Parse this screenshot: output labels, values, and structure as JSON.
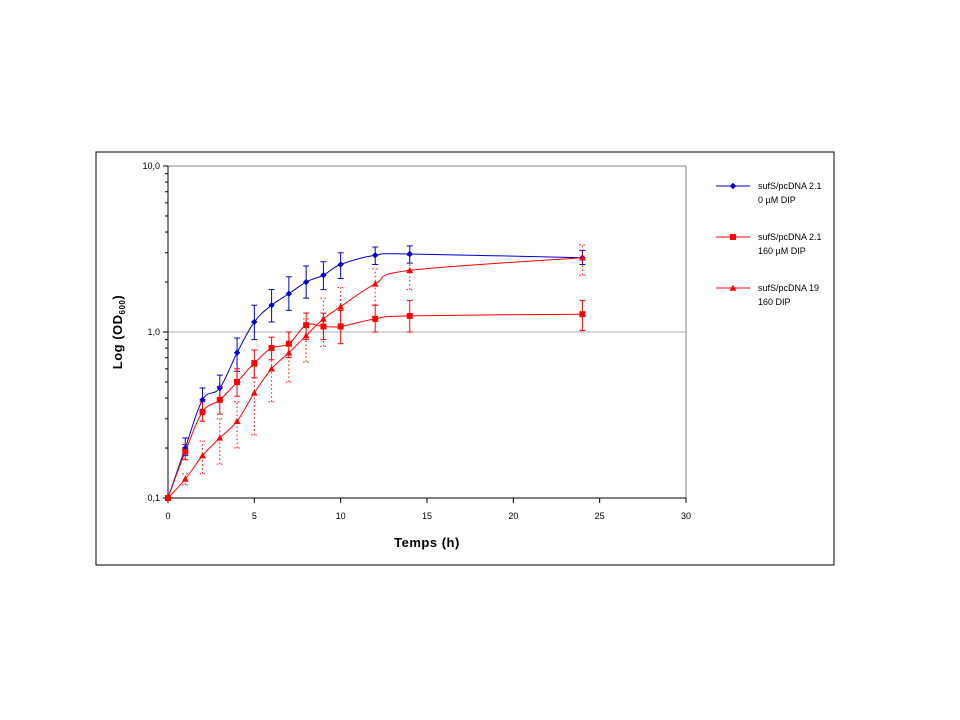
{
  "chart_data": {
    "type": "line",
    "title": "",
    "xlabel": "Temps (h)",
    "ylabel": {
      "prefix": "Log (OD",
      "subscript": "600",
      "suffix": ")"
    },
    "xlim": [
      0,
      30
    ],
    "ylim": [
      0.1,
      10
    ],
    "yscale": "log",
    "x_ticks": [
      0,
      5,
      10,
      15,
      20,
      25,
      30
    ],
    "x_tick_labels": [
      "0",
      "5",
      "10",
      "15",
      "20",
      "25",
      "30"
    ],
    "y_ticks": [
      0.1,
      1,
      10
    ],
    "y_tick_labels": [
      "0,1",
      "1,0",
      "10,0"
    ],
    "grid": "horizontal major gridline at 1,0",
    "legend_position": "right",
    "colors": {
      "blue": "#0000cc",
      "red": "#ff0000",
      "frame": "#000000",
      "gridline": "#b0b0b0"
    },
    "series": [
      {
        "name_lines": [
          "sufS/pcDNA 2.1",
          "0 µM DIP"
        ],
        "color": "#0000cc",
        "marker": "diamond",
        "errorbar_style": "solid",
        "points": [
          {
            "x": 0,
            "y": 0.1,
            "yerr": [
              0.1,
              0.1
            ]
          },
          {
            "x": 1,
            "y": 0.2,
            "yerr": [
              0.18,
              0.23
            ]
          },
          {
            "x": 2,
            "y": 0.39,
            "yerr": [
              0.33,
              0.46
            ]
          },
          {
            "x": 3,
            "y": 0.46,
            "yerr": [
              0.39,
              0.55
            ]
          },
          {
            "x": 4,
            "y": 0.75,
            "yerr": [
              0.58,
              0.92
            ]
          },
          {
            "x": 5,
            "y": 1.15,
            "yerr": [
              0.9,
              1.45
            ]
          },
          {
            "x": 6,
            "y": 1.45,
            "yerr": [
              1.15,
              1.8
            ]
          },
          {
            "x": 7,
            "y": 1.7,
            "yerr": [
              1.35,
              2.15
            ]
          },
          {
            "x": 8,
            "y": 2.0,
            "yerr": [
              1.6,
              2.5
            ]
          },
          {
            "x": 9,
            "y": 2.2,
            "yerr": [
              1.8,
              2.65
            ]
          },
          {
            "x": 10,
            "y": 2.55,
            "yerr": [
              2.1,
              3.0
            ]
          },
          {
            "x": 12,
            "y": 2.9,
            "yerr": [
              2.55,
              3.25
            ]
          },
          {
            "x": 14,
            "y": 2.95,
            "yerr": [
              2.6,
              3.3
            ]
          },
          {
            "x": 24,
            "y": 2.8,
            "yerr": [
              2.55,
              3.1
            ]
          }
        ]
      },
      {
        "name_lines": [
          "sufS/pcDNA 2.1",
          "160 µM DIP"
        ],
        "color": "#ff0000",
        "marker": "square",
        "errorbar_style": "solid",
        "points": [
          {
            "x": 0,
            "y": 0.1,
            "yerr": [
              0.1,
              0.1
            ]
          },
          {
            "x": 1,
            "y": 0.19,
            "yerr": [
              0.17,
              0.21
            ]
          },
          {
            "x": 2,
            "y": 0.33,
            "yerr": [
              0.29,
              0.38
            ]
          },
          {
            "x": 3,
            "y": 0.39,
            "yerr": [
              0.32,
              0.47
            ]
          },
          {
            "x": 4,
            "y": 0.5,
            "yerr": [
              0.41,
              0.6
            ]
          },
          {
            "x": 5,
            "y": 0.65,
            "yerr": [
              0.53,
              0.78
            ]
          },
          {
            "x": 6,
            "y": 0.8,
            "yerr": [
              0.68,
              0.93
            ]
          },
          {
            "x": 7,
            "y": 0.85,
            "yerr": [
              0.7,
              1.0
            ]
          },
          {
            "x": 8,
            "y": 1.1,
            "yerr": [
              0.9,
              1.3
            ]
          },
          {
            "x": 9,
            "y": 1.08,
            "yerr": [
              0.9,
              1.3
            ]
          },
          {
            "x": 10,
            "y": 1.08,
            "yerr": [
              0.85,
              1.35
            ]
          },
          {
            "x": 12,
            "y": 1.2,
            "yerr": [
              1.0,
              1.45
            ]
          },
          {
            "x": 14,
            "y": 1.25,
            "yerr": [
              1.0,
              1.55
            ]
          },
          {
            "x": 24,
            "y": 1.28,
            "yerr": [
              1.02,
              1.55
            ]
          }
        ]
      },
      {
        "name_lines": [
          "sufS/pcDNA 19",
          "160 DIP"
        ],
        "color": "#ff0000",
        "marker": "triangle",
        "errorbar_style": "dotted",
        "points": [
          {
            "x": 0,
            "y": 0.1,
            "yerr": [
              0.1,
              0.1
            ]
          },
          {
            "x": 1,
            "y": 0.13,
            "yerr": [
              0.12,
              0.14
            ]
          },
          {
            "x": 2,
            "y": 0.18,
            "yerr": [
              0.14,
              0.22
            ]
          },
          {
            "x": 3,
            "y": 0.23,
            "yerr": [
              0.16,
              0.3
            ]
          },
          {
            "x": 4,
            "y": 0.29,
            "yerr": [
              0.2,
              0.38
            ]
          },
          {
            "x": 5,
            "y": 0.43,
            "yerr": [
              0.24,
              0.62
            ]
          },
          {
            "x": 6,
            "y": 0.6,
            "yerr": [
              0.38,
              0.82
            ]
          },
          {
            "x": 7,
            "y": 0.75,
            "yerr": [
              0.5,
              1.0
            ]
          },
          {
            "x": 8,
            "y": 0.95,
            "yerr": [
              0.66,
              1.2
            ]
          },
          {
            "x": 9,
            "y": 1.2,
            "yerr": [
              0.82,
              1.6
            ]
          },
          {
            "x": 10,
            "y": 1.42,
            "yerr": [
              1.05,
              1.85
            ]
          },
          {
            "x": 12,
            "y": 1.95,
            "yerr": [
              1.45,
              2.4
            ]
          },
          {
            "x": 14,
            "y": 2.35,
            "yerr": [
              1.8,
              2.9
            ]
          },
          {
            "x": 24,
            "y": 2.8,
            "yerr": [
              2.2,
              3.35
            ]
          }
        ]
      }
    ]
  }
}
